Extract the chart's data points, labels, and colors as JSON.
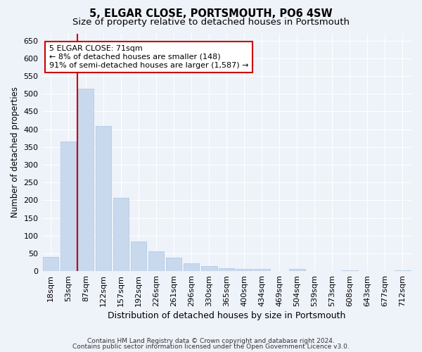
{
  "title": "5, ELGAR CLOSE, PORTSMOUTH, PO6 4SW",
  "subtitle": "Size of property relative to detached houses in Portsmouth",
  "xlabel": "Distribution of detached houses by size in Portsmouth",
  "ylabel": "Number of detached properties",
  "categories": [
    "18sqm",
    "53sqm",
    "87sqm",
    "122sqm",
    "157sqm",
    "192sqm",
    "226sqm",
    "261sqm",
    "296sqm",
    "330sqm",
    "365sqm",
    "400sqm",
    "434sqm",
    "469sqm",
    "504sqm",
    "539sqm",
    "573sqm",
    "608sqm",
    "643sqm",
    "677sqm",
    "712sqm"
  ],
  "values": [
    40,
    365,
    515,
    410,
    207,
    83,
    56,
    38,
    22,
    15,
    8,
    7,
    6,
    0,
    7,
    0,
    0,
    3,
    0,
    0,
    3
  ],
  "bar_color": "#c8d9ee",
  "bar_edge_color": "#adc4e0",
  "vline_color": "#cc0000",
  "annotation_text": "5 ELGAR CLOSE: 71sqm\n← 8% of detached houses are smaller (148)\n91% of semi-detached houses are larger (1,587) →",
  "annotation_box_color": "#ffffff",
  "annotation_box_edge": "#cc0000",
  "ylim": [
    0,
    670
  ],
  "yticks": [
    0,
    50,
    100,
    150,
    200,
    250,
    300,
    350,
    400,
    450,
    500,
    550,
    600,
    650
  ],
  "footnote1": "Contains HM Land Registry data © Crown copyright and database right 2024.",
  "footnote2": "Contains public sector information licensed under the Open Government Licence v3.0.",
  "background_color": "#eef2f9",
  "plot_bg_color": "#eef2f9",
  "grid_color": "#ffffff",
  "title_fontsize": 10.5,
  "subtitle_fontsize": 9.5,
  "xlabel_fontsize": 9,
  "ylabel_fontsize": 8.5,
  "tick_fontsize": 8,
  "annot_fontsize": 8,
  "footnote_fontsize": 6.5
}
